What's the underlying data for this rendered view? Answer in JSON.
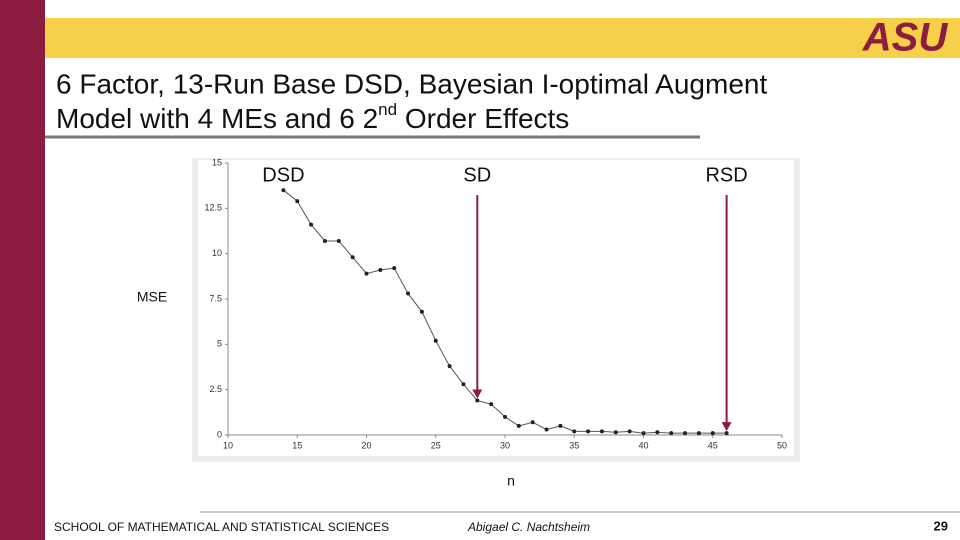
{
  "slide": {
    "title_parts": [
      "6 Factor, 13-Run Base DSD, Bayesian I-optimal Augment",
      "Model with 4 MEs and 6 2",
      "nd",
      " Order Effects"
    ],
    "logo": "ASU",
    "footer_school": "SCHOOL OF MATHEMATICAL AND STATISTICAL SCIENCES",
    "footer_author": "Abigael C. Nachtsheim",
    "page_number": "29"
  },
  "chart_data": {
    "type": "line",
    "x_label": "n",
    "y_label": "MSE",
    "x": [
      14,
      15,
      16,
      17,
      18,
      19,
      20,
      21,
      22,
      23,
      24,
      25,
      26,
      27,
      28,
      29,
      30,
      31,
      32,
      33,
      34,
      35,
      36,
      37,
      38,
      39,
      40,
      41,
      42,
      43,
      44,
      45,
      46
    ],
    "series": [
      {
        "color": "#555555",
        "values": [
          13.5,
          12.9,
          11.6,
          10.7,
          10.7,
          9.8,
          8.9,
          9.1,
          9.2,
          7.8,
          6.8,
          5.2,
          3.8,
          2.8,
          1.9,
          1.7,
          1.0,
          0.5,
          0.7,
          0.3,
          0.5,
          0.2,
          0.2,
          0.2,
          0.15,
          0.2,
          0.1,
          0.15,
          0.1,
          0.1,
          0.1,
          0.1,
          0.1
        ]
      }
    ],
    "xlim": [
      10,
      50
    ],
    "xticks": [
      10,
      15,
      20,
      25,
      30,
      35,
      40,
      45,
      50
    ],
    "ylim": [
      0,
      15
    ],
    "yticks": [
      0,
      2.5,
      5,
      7.5,
      10,
      12.5,
      15
    ],
    "annotations": [
      {
        "text": "DSD",
        "x": 14,
        "arrow": false
      },
      {
        "text": "SD",
        "x": 28,
        "arrow": true
      },
      {
        "text": "RSD",
        "x": 46,
        "arrow": true
      }
    ],
    "arrow_color": "#8c1d40"
  }
}
